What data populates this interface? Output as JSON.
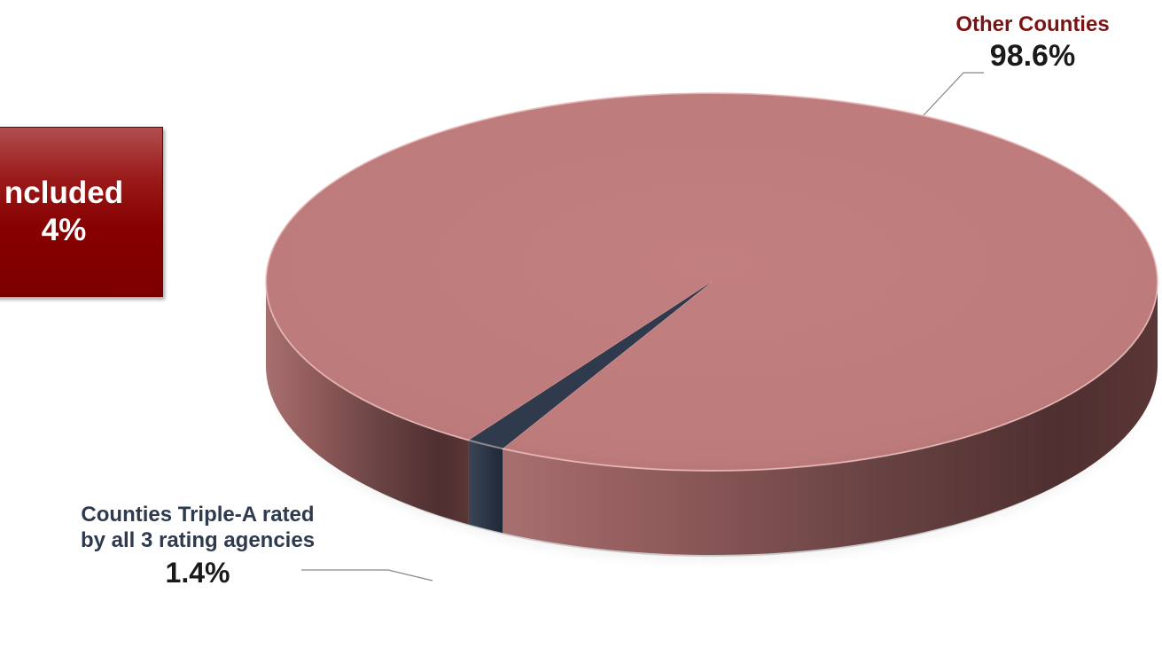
{
  "chart_data": {
    "type": "pie",
    "title": "",
    "slices": [
      {
        "label": "Other Counties",
        "value": 98.6,
        "value_label": "98.6%",
        "color": "#c17f7f"
      },
      {
        "label": "Counties Triple-A rated by all 3 rating agencies",
        "value": 1.4,
        "value_label": "1.4%",
        "color": "#2f3a4c"
      }
    ],
    "callout": {
      "line1": "ncluded",
      "line2": "4%",
      "color": "#8b0000"
    }
  }
}
